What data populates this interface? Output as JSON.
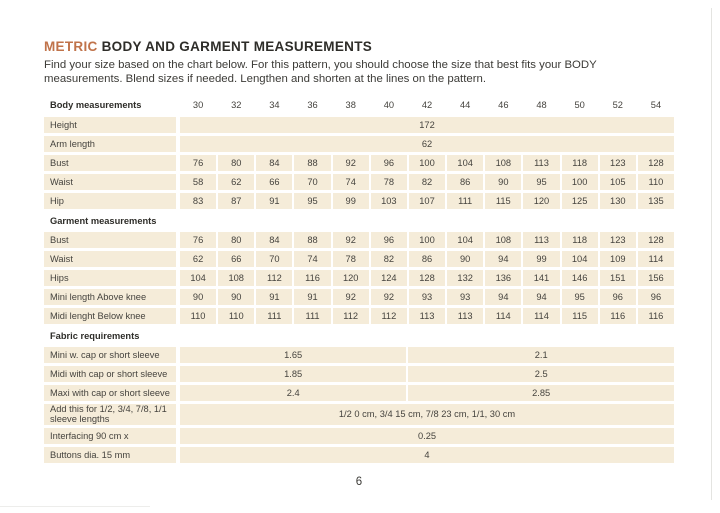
{
  "header": {
    "title_accent": "METRIC",
    "title_rest": " BODY AND GARMENT MEASUREMENTS",
    "intro_line1": "Find your size based on the chart below. For this pattern, you should choose the size that best fits your BODY",
    "intro_line2": "measurements. Blend sizes if needed. Lengthen and shorten at the lines on the pattern."
  },
  "colors": {
    "accent": "#c0734a",
    "cell_background": "#f5ecd9",
    "text": "#45433e"
  },
  "table": {
    "size_header": {
      "label": "Body measurements",
      "sizes": [
        "30",
        "32",
        "34",
        "36",
        "38",
        "40",
        "42",
        "44",
        "46",
        "48",
        "50",
        "52",
        "54"
      ]
    },
    "sections": [
      {
        "rows": [
          {
            "label": "Height",
            "span": "172"
          },
          {
            "label": "Arm length",
            "span": "62"
          },
          {
            "label": "Bust",
            "cells": [
              "76",
              "80",
              "84",
              "88",
              "92",
              "96",
              "100",
              "104",
              "108",
              "113",
              "118",
              "123",
              "128"
            ]
          },
          {
            "label": "Waist",
            "cells": [
              "58",
              "62",
              "66",
              "70",
              "74",
              "78",
              "82",
              "86",
              "90",
              "95",
              "100",
              "105",
              "110"
            ]
          },
          {
            "label": "Hip",
            "cells": [
              "83",
              "87",
              "91",
              "95",
              "99",
              "103",
              "107",
              "111",
              "115",
              "120",
              "125",
              "130",
              "135"
            ]
          }
        ]
      },
      {
        "header": "Garment measurements",
        "rows": [
          {
            "label": "Bust",
            "cells": [
              "76",
              "80",
              "84",
              "88",
              "92",
              "96",
              "100",
              "104",
              "108",
              "113",
              "118",
              "123",
              "128"
            ]
          },
          {
            "label": "Waist",
            "cells": [
              "62",
              "66",
              "70",
              "74",
              "78",
              "82",
              "86",
              "90",
              "94",
              "99",
              "104",
              "109",
              "114"
            ]
          },
          {
            "label": "Hips",
            "cells": [
              "104",
              "108",
              "112",
              "116",
              "120",
              "124",
              "128",
              "132",
              "136",
              "141",
              "146",
              "151",
              "156"
            ]
          },
          {
            "label": "Mini length Above knee",
            "cells": [
              "90",
              "90",
              "91",
              "91",
              "92",
              "92",
              "93",
              "93",
              "94",
              "94",
              "95",
              "96",
              "96"
            ]
          },
          {
            "label": "Midi lenght Below knee",
            "cells": [
              "110",
              "110",
              "111",
              "111",
              "112",
              "112",
              "113",
              "113",
              "114",
              "114",
              "115",
              "116",
              "116"
            ]
          }
        ]
      },
      {
        "header": "Fabric requirements",
        "rows": [
          {
            "label": "Mini w. cap or short sleeve",
            "split": [
              "1.65",
              "2.1"
            ]
          },
          {
            "label": "Midi with cap or short sleeve",
            "split": [
              "1.85",
              "2.5"
            ]
          },
          {
            "label": "Maxi with cap or short sleeve",
            "split": [
              "2.4",
              "2.85"
            ]
          },
          {
            "label": "Add this for 1/2, 3/4, 7/8, 1/1 sleeve lengths",
            "span": "1/2 0 cm, 3/4 15 cm, 7/8 23 cm, 1/1, 30 cm"
          },
          {
            "label": "Interfacing 90 cm x",
            "span": "0.25"
          },
          {
            "label": "Buttons dia. 15 mm",
            "span": "4"
          }
        ]
      }
    ]
  },
  "footer": {
    "page_number": "6"
  }
}
